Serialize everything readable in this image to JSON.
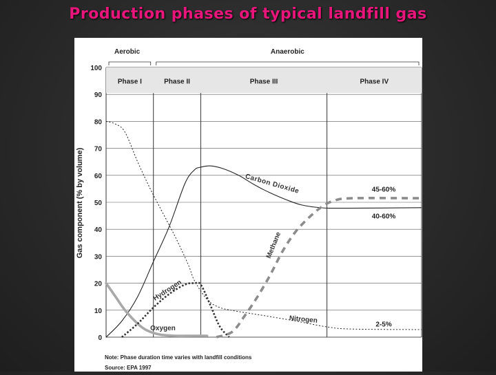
{
  "slide": {
    "title": "Production phases of typical landfill gas"
  },
  "chart_data": {
    "type": "line",
    "title": "",
    "ylabel": "Gas component (% by volume)",
    "xlabel": "",
    "ylim": [
      0,
      100
    ],
    "yticks": [
      "0",
      "10",
      "20",
      "30",
      "40",
      "50",
      "60",
      "70",
      "80",
      "90",
      "100"
    ],
    "x_domain": [
      0,
      100
    ],
    "grid": true,
    "regimes": [
      {
        "label": "Aerobic",
        "span": [
          0,
          15
        ]
      },
      {
        "label": "Anaerobic",
        "span": [
          15,
          100
        ]
      }
    ],
    "phases": [
      {
        "label": "Phase I",
        "span": [
          0,
          15
        ]
      },
      {
        "label": "Phase II",
        "span": [
          15,
          30
        ]
      },
      {
        "label": "Phase III",
        "span": [
          30,
          70
        ]
      },
      {
        "label": "Phase IV",
        "span": [
          70,
          100
        ]
      }
    ],
    "series": [
      {
        "name": "Carbon Dioxide",
        "style": "solid",
        "color": "#222222",
        "points": [
          [
            0,
            0
          ],
          [
            5,
            6
          ],
          [
            10,
            15
          ],
          [
            15,
            28
          ],
          [
            20,
            41
          ],
          [
            25,
            57
          ],
          [
            28,
            62
          ],
          [
            30,
            63
          ],
          [
            33,
            63.5
          ],
          [
            37,
            62.5
          ],
          [
            42,
            60
          ],
          [
            47,
            56.5
          ],
          [
            52,
            53.5
          ],
          [
            57,
            51
          ],
          [
            62,
            49
          ],
          [
            68,
            48
          ],
          [
            75,
            47.8
          ],
          [
            100,
            48
          ]
        ]
      },
      {
        "name": "Nitrogen",
        "style": "dotted",
        "color": "#222222",
        "points": [
          [
            0,
            80
          ],
          [
            3,
            79
          ],
          [
            6,
            76
          ],
          [
            10,
            65
          ],
          [
            14,
            55
          ],
          [
            18,
            46
          ],
          [
            22,
            37
          ],
          [
            26,
            27
          ],
          [
            28,
            21
          ],
          [
            32,
            14
          ],
          [
            36,
            11
          ],
          [
            42,
            9.5
          ],
          [
            50,
            8
          ],
          [
            60,
            6
          ],
          [
            70,
            3.8
          ],
          [
            78,
            3
          ],
          [
            100,
            2.8
          ]
        ]
      },
      {
        "name": "Oxygen",
        "style": "solid",
        "color": "#a8a8a8",
        "points": [
          [
            0,
            20
          ],
          [
            3,
            15
          ],
          [
            6,
            10
          ],
          [
            10,
            5
          ],
          [
            13,
            2.5
          ],
          [
            17,
            1
          ],
          [
            22,
            0.5
          ],
          [
            28,
            0.5
          ],
          [
            32,
            0.5
          ]
        ]
      },
      {
        "name": "Hydrogen",
        "style": "dotted-heavy",
        "color": "#333333",
        "points": [
          [
            5,
            0
          ],
          [
            10,
            5
          ],
          [
            15,
            11
          ],
          [
            20,
            16
          ],
          [
            25,
            19.5
          ],
          [
            28,
            20
          ],
          [
            30,
            19.5
          ],
          [
            33,
            12
          ],
          [
            36,
            4
          ],
          [
            39,
            0
          ]
        ]
      },
      {
        "name": "Methane",
        "style": "dashed",
        "color": "#8c8c8c",
        "points": [
          [
            35,
            0
          ],
          [
            40,
            2
          ],
          [
            44,
            8
          ],
          [
            48,
            15
          ],
          [
            52,
            23
          ],
          [
            56,
            32
          ],
          [
            60,
            39
          ],
          [
            64,
            44
          ],
          [
            68,
            48
          ],
          [
            72,
            50.5
          ],
          [
            78,
            51.5
          ],
          [
            100,
            51.5
          ]
        ]
      }
    ],
    "annotations": [
      {
        "text": "45-60%",
        "x": 88,
        "y": 55
      },
      {
        "text": "40-60%",
        "x": 88,
        "y": 45
      },
      {
        "text": "2-5%",
        "x": 88,
        "y": 5
      }
    ],
    "footnotes": {
      "note": "Note: Phase duration time varies with landfill conditions",
      "source": "Source: EPA 1997"
    }
  }
}
